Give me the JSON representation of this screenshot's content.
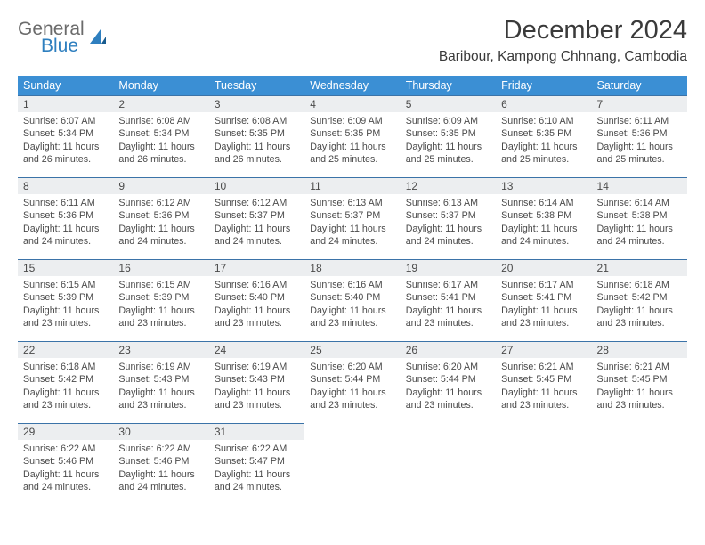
{
  "brand": {
    "general": "General",
    "blue": "Blue"
  },
  "title": "December 2024",
  "location": "Baribour, Kampong Chhnang, Cambodia",
  "colors": {
    "header_bg": "#3b8fd4",
    "band_bg": "#eceef0",
    "band_border": "#3b73a8",
    "text": "#4a4a4a",
    "logo_blue": "#2e7fbf"
  },
  "dayNames": [
    "Sunday",
    "Monday",
    "Tuesday",
    "Wednesday",
    "Thursday",
    "Friday",
    "Saturday"
  ],
  "firstWeekday": 0,
  "daysInMonth": 31,
  "days": {
    "1": {
      "sunrise": "6:07 AM",
      "sunset": "5:34 PM",
      "daylight": "11 hours and 26 minutes."
    },
    "2": {
      "sunrise": "6:08 AM",
      "sunset": "5:34 PM",
      "daylight": "11 hours and 26 minutes."
    },
    "3": {
      "sunrise": "6:08 AM",
      "sunset": "5:35 PM",
      "daylight": "11 hours and 26 minutes."
    },
    "4": {
      "sunrise": "6:09 AM",
      "sunset": "5:35 PM",
      "daylight": "11 hours and 25 minutes."
    },
    "5": {
      "sunrise": "6:09 AM",
      "sunset": "5:35 PM",
      "daylight": "11 hours and 25 minutes."
    },
    "6": {
      "sunrise": "6:10 AM",
      "sunset": "5:35 PM",
      "daylight": "11 hours and 25 minutes."
    },
    "7": {
      "sunrise": "6:11 AM",
      "sunset": "5:36 PM",
      "daylight": "11 hours and 25 minutes."
    },
    "8": {
      "sunrise": "6:11 AM",
      "sunset": "5:36 PM",
      "daylight": "11 hours and 24 minutes."
    },
    "9": {
      "sunrise": "6:12 AM",
      "sunset": "5:36 PM",
      "daylight": "11 hours and 24 minutes."
    },
    "10": {
      "sunrise": "6:12 AM",
      "sunset": "5:37 PM",
      "daylight": "11 hours and 24 minutes."
    },
    "11": {
      "sunrise": "6:13 AM",
      "sunset": "5:37 PM",
      "daylight": "11 hours and 24 minutes."
    },
    "12": {
      "sunrise": "6:13 AM",
      "sunset": "5:37 PM",
      "daylight": "11 hours and 24 minutes."
    },
    "13": {
      "sunrise": "6:14 AM",
      "sunset": "5:38 PM",
      "daylight": "11 hours and 24 minutes."
    },
    "14": {
      "sunrise": "6:14 AM",
      "sunset": "5:38 PM",
      "daylight": "11 hours and 24 minutes."
    },
    "15": {
      "sunrise": "6:15 AM",
      "sunset": "5:39 PM",
      "daylight": "11 hours and 23 minutes."
    },
    "16": {
      "sunrise": "6:15 AM",
      "sunset": "5:39 PM",
      "daylight": "11 hours and 23 minutes."
    },
    "17": {
      "sunrise": "6:16 AM",
      "sunset": "5:40 PM",
      "daylight": "11 hours and 23 minutes."
    },
    "18": {
      "sunrise": "6:16 AM",
      "sunset": "5:40 PM",
      "daylight": "11 hours and 23 minutes."
    },
    "19": {
      "sunrise": "6:17 AM",
      "sunset": "5:41 PM",
      "daylight": "11 hours and 23 minutes."
    },
    "20": {
      "sunrise": "6:17 AM",
      "sunset": "5:41 PM",
      "daylight": "11 hours and 23 minutes."
    },
    "21": {
      "sunrise": "6:18 AM",
      "sunset": "5:42 PM",
      "daylight": "11 hours and 23 minutes."
    },
    "22": {
      "sunrise": "6:18 AM",
      "sunset": "5:42 PM",
      "daylight": "11 hours and 23 minutes."
    },
    "23": {
      "sunrise": "6:19 AM",
      "sunset": "5:43 PM",
      "daylight": "11 hours and 23 minutes."
    },
    "24": {
      "sunrise": "6:19 AM",
      "sunset": "5:43 PM",
      "daylight": "11 hours and 23 minutes."
    },
    "25": {
      "sunrise": "6:20 AM",
      "sunset": "5:44 PM",
      "daylight": "11 hours and 23 minutes."
    },
    "26": {
      "sunrise": "6:20 AM",
      "sunset": "5:44 PM",
      "daylight": "11 hours and 23 minutes."
    },
    "27": {
      "sunrise": "6:21 AM",
      "sunset": "5:45 PM",
      "daylight": "11 hours and 23 minutes."
    },
    "28": {
      "sunrise": "6:21 AM",
      "sunset": "5:45 PM",
      "daylight": "11 hours and 23 minutes."
    },
    "29": {
      "sunrise": "6:22 AM",
      "sunset": "5:46 PM",
      "daylight": "11 hours and 24 minutes."
    },
    "30": {
      "sunrise": "6:22 AM",
      "sunset": "5:46 PM",
      "daylight": "11 hours and 24 minutes."
    },
    "31": {
      "sunrise": "6:22 AM",
      "sunset": "5:47 PM",
      "daylight": "11 hours and 24 minutes."
    }
  },
  "labels": {
    "sunrise": "Sunrise:",
    "sunset": "Sunset:",
    "daylight": "Daylight:"
  }
}
